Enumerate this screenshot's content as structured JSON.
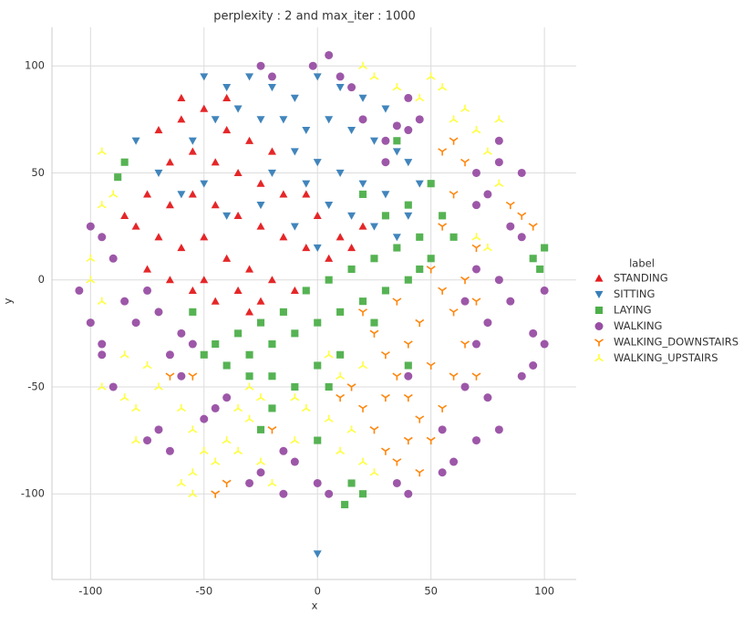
{
  "chart_data": {
    "type": "scatter",
    "title": "perplexity : 2 and max_iter : 1000",
    "xlabel": "x",
    "ylabel": "y",
    "legend_title": "label",
    "legend": "outside-right",
    "grid": true,
    "xlim": [
      -117,
      114
    ],
    "ylim": [
      -140,
      118
    ],
    "xticks": [
      -100,
      -50,
      0,
      50,
      100
    ],
    "yticks": [
      -100,
      -50,
      0,
      50,
      100
    ],
    "series": [
      {
        "name": "STANDING",
        "color": "#e41a1c",
        "marker": "triangle-up",
        "x": [
          -70,
          -60,
          -50,
          -40,
          -30,
          -20,
          -65,
          -55,
          -45,
          -35,
          -25,
          -15,
          -75,
          -65,
          -55,
          -45,
          -35,
          -25,
          -15,
          -5,
          5,
          15,
          -80,
          -70,
          -60,
          -50,
          -40,
          -30,
          -20,
          -10,
          -75,
          -65,
          -55,
          -45,
          -35,
          -25,
          0,
          10,
          -5,
          -85,
          -60,
          -40,
          -30,
          20,
          -50
        ],
        "values": [
          70,
          75,
          80,
          70,
          65,
          60,
          55,
          60,
          55,
          50,
          45,
          40,
          40,
          35,
          40,
          35,
          30,
          25,
          20,
          15,
          10,
          15,
          25,
          20,
          15,
          20,
          10,
          5,
          0,
          -5,
          5,
          0,
          -5,
          -10,
          -5,
          -10,
          30,
          20,
          40,
          30,
          85,
          85,
          -15,
          25,
          0
        ]
      },
      {
        "name": "SITTING",
        "color": "#377eb8",
        "marker": "triangle-down",
        "x": [
          -50,
          -40,
          -30,
          -20,
          -10,
          0,
          10,
          20,
          30,
          -35,
          -25,
          -15,
          -5,
          5,
          15,
          25,
          35,
          40,
          45,
          -10,
          0,
          10,
          20,
          30,
          40,
          -20,
          -5,
          5,
          15,
          25,
          35,
          -40,
          -50,
          -60,
          -70,
          -80,
          -25,
          -10,
          0,
          -55,
          -45,
          0
        ],
        "values": [
          95,
          90,
          95,
          90,
          85,
          95,
          90,
          85,
          80,
          80,
          75,
          75,
          70,
          75,
          70,
          65,
          60,
          55,
          45,
          60,
          55,
          50,
          45,
          40,
          30,
          50,
          45,
          35,
          30,
          25,
          20,
          30,
          45,
          40,
          50,
          65,
          35,
          25,
          15,
          65,
          75,
          -128
        ]
      },
      {
        "name": "LAYING",
        "color": "#4daf4a",
        "marker": "square",
        "x": [
          20,
          30,
          40,
          50,
          55,
          45,
          35,
          25,
          15,
          5,
          -5,
          -15,
          -25,
          -35,
          -45,
          -55,
          -50,
          -40,
          -30,
          -20,
          -10,
          0,
          10,
          20,
          30,
          40,
          50,
          60,
          45,
          25,
          10,
          0,
          -20,
          -30,
          -20,
          -25,
          0,
          15,
          12,
          20,
          -85,
          -88,
          95,
          100,
          98,
          40,
          35,
          -10,
          5
        ],
        "values": [
          40,
          30,
          35,
          45,
          30,
          20,
          15,
          10,
          5,
          0,
          -5,
          -15,
          -20,
          -25,
          -30,
          -15,
          -35,
          -40,
          -35,
          -30,
          -25,
          -20,
          -15,
          -10,
          -5,
          0,
          10,
          20,
          5,
          -20,
          -35,
          -40,
          -45,
          -45,
          -60,
          -70,
          -75,
          -95,
          -105,
          -100,
          55,
          48,
          10,
          15,
          5,
          -40,
          65,
          -50,
          -50
        ]
      },
      {
        "name": "WALKING",
        "color": "#984ea3",
        "marker": "circle",
        "x": [
          -25,
          -20,
          -2,
          5,
          10,
          15,
          40,
          45,
          40,
          70,
          80,
          90,
          75,
          70,
          90,
          85,
          70,
          80,
          100,
          85,
          75,
          95,
          70,
          100,
          90,
          65,
          75,
          80,
          70,
          60,
          55,
          35,
          40,
          0,
          5,
          -10,
          -15,
          -25,
          -30,
          -15,
          -45,
          -50,
          -70,
          -75,
          -65,
          -90,
          -105,
          -100,
          -95,
          -95,
          -80,
          -85,
          -75,
          -90,
          -100,
          -95,
          -70,
          -60,
          -65,
          -60,
          -40,
          -55,
          40,
          55,
          20,
          30,
          35,
          30,
          80,
          95,
          65
        ],
        "values": [
          100,
          95,
          100,
          105,
          95,
          90,
          85,
          75,
          70,
          50,
          55,
          50,
          40,
          35,
          20,
          25,
          5,
          0,
          -5,
          -10,
          -20,
          -25,
          -30,
          -30,
          -45,
          -50,
          -55,
          -70,
          -75,
          -85,
          -90,
          -95,
          -100,
          -95,
          -100,
          -85,
          -100,
          -90,
          -95,
          -80,
          -60,
          -65,
          -70,
          -75,
          -80,
          -50,
          -5,
          -20,
          -30,
          -35,
          -20,
          -10,
          -5,
          10,
          25,
          20,
          -15,
          -25,
          -35,
          -45,
          -55,
          -30,
          -45,
          -70,
          75,
          65,
          72,
          55,
          65,
          -40,
          -10
        ]
      },
      {
        "name": "WALKING_DOWNSTAIRS",
        "color": "#ff7f00",
        "marker": "tri-down",
        "x": [
          20,
          25,
          30,
          35,
          40,
          45,
          50,
          55,
          60,
          65,
          60,
          55,
          50,
          45,
          35,
          30,
          25,
          30,
          35,
          40,
          45,
          15,
          20,
          65,
          70,
          70,
          55,
          60,
          65,
          55,
          60,
          85,
          90,
          95,
          50,
          40,
          70,
          -45,
          -40,
          -55,
          -65,
          -20,
          10
        ],
        "values": [
          -15,
          -25,
          -35,
          -45,
          -55,
          -65,
          -75,
          -60,
          -45,
          -30,
          -15,
          -5,
          5,
          -20,
          -10,
          -55,
          -70,
          -80,
          -85,
          -75,
          -90,
          -50,
          -60,
          0,
          15,
          -10,
          25,
          40,
          55,
          60,
          65,
          35,
          30,
          25,
          -40,
          -30,
          -45,
          -100,
          -95,
          -45,
          -45,
          -70,
          -55
        ]
      },
      {
        "name": "WALKING_UPSTAIRS",
        "color": "#ffff33",
        "marker": "tri-up",
        "x": [
          20,
          25,
          35,
          45,
          50,
          55,
          65,
          70,
          75,
          80,
          60,
          80,
          70,
          75,
          -100,
          -95,
          -90,
          -95,
          -100,
          -85,
          -95,
          -85,
          -75,
          -70,
          -60,
          -55,
          -50,
          -45,
          -55,
          -60,
          -55,
          -40,
          -30,
          -35,
          -25,
          -20,
          -10,
          -5,
          5,
          10,
          15,
          20,
          25,
          20,
          10,
          5,
          -10,
          -25,
          -35,
          -80,
          -80,
          -95,
          -30
        ],
        "values": [
          100,
          95,
          90,
          85,
          95,
          90,
          80,
          70,
          60,
          75,
          75,
          45,
          20,
          15,
          0,
          -10,
          40,
          35,
          10,
          -35,
          -50,
          -55,
          -40,
          -50,
          -60,
          -70,
          -80,
          -85,
          -90,
          -95,
          -100,
          -75,
          -65,
          -80,
          -85,
          -95,
          -75,
          -60,
          -65,
          -80,
          -70,
          -85,
          -90,
          -40,
          -45,
          -35,
          -55,
          -55,
          -60,
          -75,
          -60,
          60,
          -50
        ]
      }
    ]
  }
}
